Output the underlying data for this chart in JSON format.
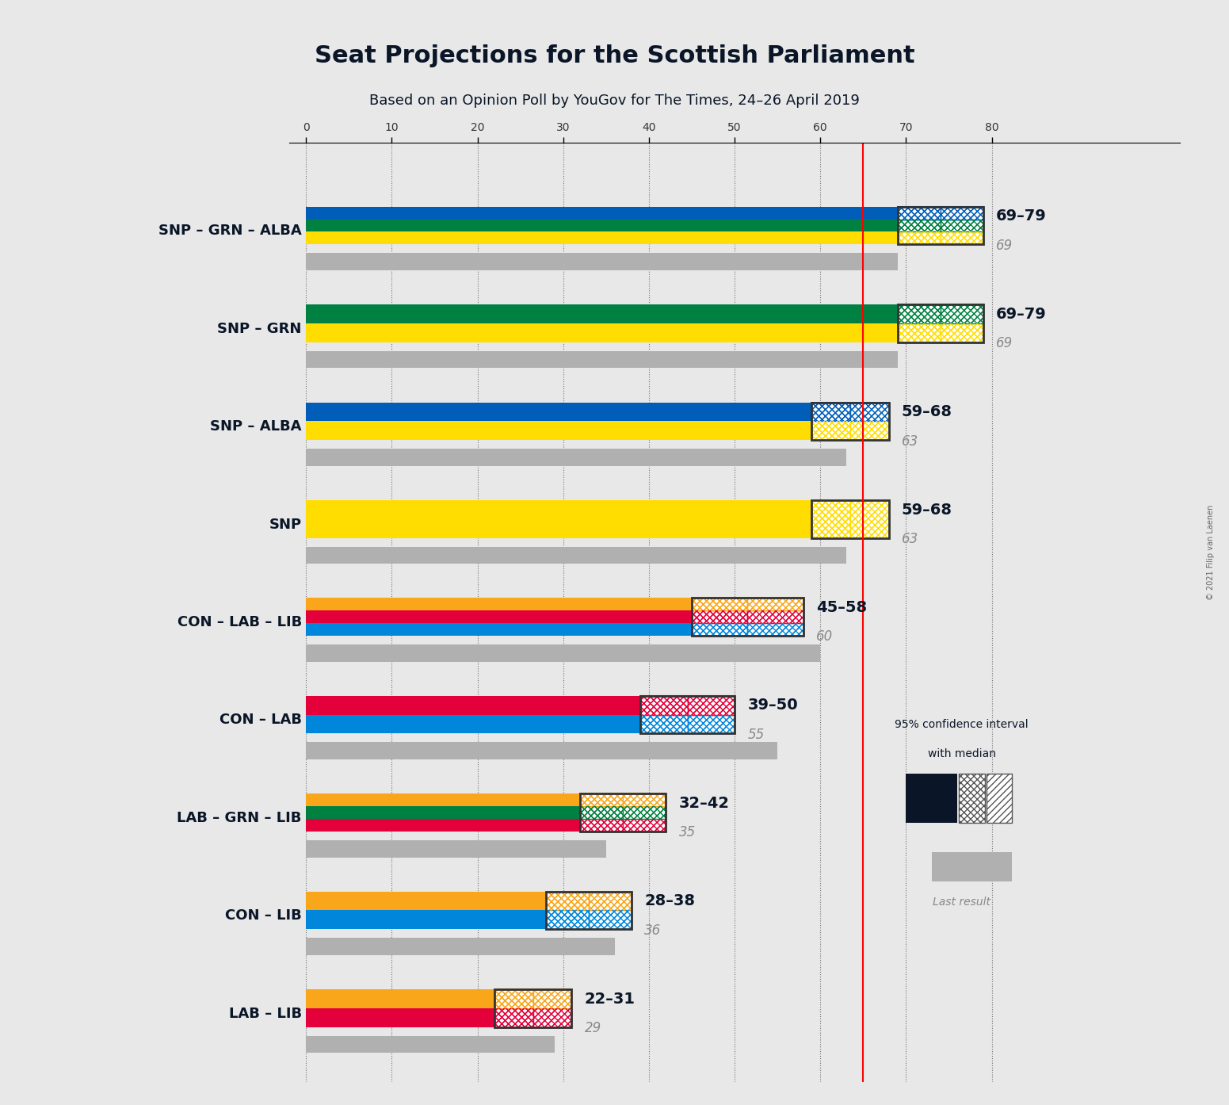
{
  "title": "Seat Projections for the Scottish Parliament",
  "subtitle": "Based on an Opinion Poll by YouGov for The Times, 24–26 April 2019",
  "copyright": "© 2021 Filip van Laenen",
  "background_color": "#e8e8e8",
  "plot_bg_color": "#e8e8e8",
  "majority_line": 65,
  "x_max": 90,
  "x_ticks": [
    0,
    10,
    20,
    30,
    40,
    50,
    60,
    70,
    80
  ],
  "coalitions": [
    {
      "label": "SNP – GRN – ALBA",
      "underline": false,
      "parties": [
        "SNP",
        "GRN",
        "ALBA"
      ],
      "colors": [
        "#FFDD00",
        "#008142",
        "#005EB8"
      ],
      "bar_min": 69,
      "bar_max": 79,
      "median": 74,
      "last_result": 69,
      "range_label": "69–79",
      "last_label": "69"
    },
    {
      "label": "SNP – GRN",
      "underline": false,
      "parties": [
        "SNP",
        "GRN"
      ],
      "colors": [
        "#FFDD00",
        "#008142"
      ],
      "bar_min": 69,
      "bar_max": 79,
      "median": 74,
      "last_result": 69,
      "range_label": "69–79",
      "last_label": "69"
    },
    {
      "label": "SNP – ALBA",
      "underline": false,
      "parties": [
        "SNP",
        "ALBA"
      ],
      "colors": [
        "#FFDD00",
        "#005EB8"
      ],
      "bar_min": 59,
      "bar_max": 68,
      "median": 63,
      "last_result": 63,
      "range_label": "59–68",
      "last_label": "63"
    },
    {
      "label": "SNP",
      "underline": true,
      "parties": [
        "SNP"
      ],
      "colors": [
        "#FFDD00"
      ],
      "bar_min": 59,
      "bar_max": 68,
      "median": 63,
      "last_result": 63,
      "range_label": "59–68",
      "last_label": "63"
    },
    {
      "label": "CON – LAB – LIB",
      "underline": false,
      "parties": [
        "CON",
        "LAB",
        "LIB"
      ],
      "colors": [
        "#0087DC",
        "#E4003B",
        "#FAA61A"
      ],
      "bar_min": 45,
      "bar_max": 58,
      "median": 51,
      "last_result": 60,
      "range_label": "45–58",
      "last_label": "60"
    },
    {
      "label": "CON – LAB",
      "underline": false,
      "parties": [
        "CON",
        "LAB"
      ],
      "colors": [
        "#0087DC",
        "#E4003B"
      ],
      "bar_min": 39,
      "bar_max": 50,
      "median": 44,
      "last_result": 55,
      "range_label": "39–50",
      "last_label": "55"
    },
    {
      "label": "LAB – GRN – LIB",
      "underline": false,
      "parties": [
        "LAB",
        "GRN",
        "LIB"
      ],
      "colors": [
        "#E4003B",
        "#008142",
        "#FAA61A"
      ],
      "bar_min": 32,
      "bar_max": 42,
      "median": 37,
      "last_result": 35,
      "range_label": "32–42",
      "last_label": "35"
    },
    {
      "label": "CON – LIB",
      "underline": false,
      "parties": [
        "CON",
        "LIB"
      ],
      "colors": [
        "#0087DC",
        "#FAA61A"
      ],
      "bar_min": 28,
      "bar_max": 38,
      "median": 33,
      "last_result": 36,
      "range_label": "28–38",
      "last_label": "36"
    },
    {
      "label": "LAB – LIB",
      "underline": false,
      "parties": [
        "LAB",
        "LIB"
      ],
      "colors": [
        "#E4003B",
        "#FAA61A"
      ],
      "bar_min": 22,
      "bar_max": 31,
      "median": 26,
      "last_result": 29,
      "range_label": "22–31",
      "last_label": "29"
    }
  ],
  "party_colors": {
    "SNP": "#FFDD00",
    "GRN": "#008142",
    "ALBA": "#005EB8",
    "CON": "#0087DC",
    "LAB": "#E4003B",
    "LIB": "#FAA61A"
  }
}
